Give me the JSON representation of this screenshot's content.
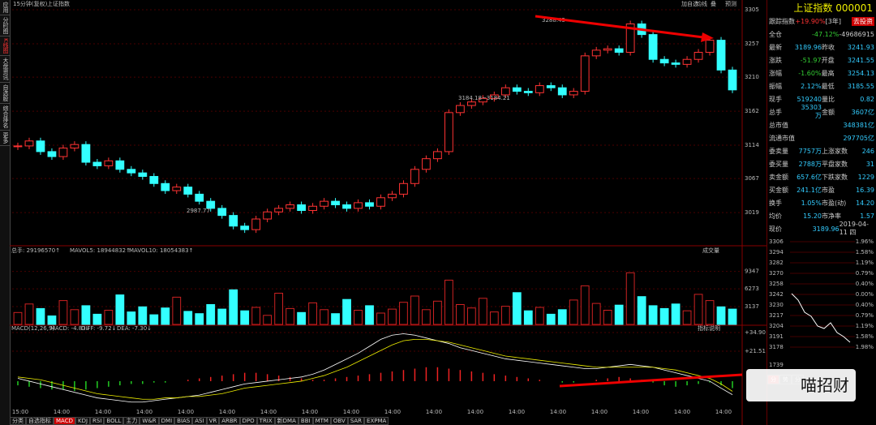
{
  "header": {
    "period": "15分钟(复权)",
    "name": "上证指数",
    "tools": [
      "加自选",
      "均线",
      "叠",
      "预测"
    ]
  },
  "sidebar": [
    "应用",
    "分时图",
    "K线图",
    "大盘资讯",
    "自选股",
    "综合排名",
    "更多"
  ],
  "kline": {
    "annotations": [
      "3288.45",
      "3184.18~3184.21",
      "2987.77"
    ],
    "closes": [
      3113,
      3120,
      3105,
      3098,
      3110,
      3115,
      3090,
      3085,
      3092,
      3080,
      3075,
      3070,
      3060,
      3050,
      3055,
      3045,
      3035,
      3025,
      3015,
      3000,
      2995,
      3010,
      3020,
      3025,
      3030,
      3022,
      3028,
      3035,
      3030,
      3025,
      3033,
      3028,
      3040,
      3045,
      3060,
      3080,
      3095,
      3105,
      3160,
      3170,
      3175,
      3180,
      3185,
      3195,
      3190,
      3188,
      3198,
      3195,
      3185,
      3190,
      3240,
      3248,
      3250,
      3245,
      3285,
      3270,
      3235,
      3230,
      3228,
      3235,
      3245,
      3262,
      3220,
      3192
    ],
    "ylim": [
      2978,
      3313
    ],
    "yticks": [
      3305,
      3257,
      3210,
      3162,
      3114,
      3067,
      3019
    ]
  },
  "volume": {
    "header": [
      "总手: 29196570↑",
      "MAVOL5: 18944832↑",
      "MAVOL10: 18054383↑"
    ],
    "button": "成交量",
    "values": [
      2100,
      3600,
      2800,
      1500,
      4200,
      2600,
      3300,
      1800,
      2500,
      5200,
      2200,
      3100,
      1700,
      2900,
      4800,
      2300,
      1900,
      3500,
      2700,
      6100,
      2400,
      3000,
      1600,
      5500,
      2800,
      2100,
      3800,
      2600,
      1900,
      4400,
      2500,
      3300,
      2000,
      2700,
      3900,
      5000,
      2600,
      4100,
      7800,
      3500,
      2900,
      4600,
      2200,
      3200,
      5600,
      2400,
      3000,
      1800,
      2600,
      4300,
      6800,
      3700,
      2500,
      3400,
      9100,
      4900,
      3300,
      2800,
      3600,
      2400,
      5300,
      4200,
      3100,
      2700
    ],
    "ylim": [
      0,
      10000
    ],
    "yticks": [
      9347,
      6273,
      3137
    ]
  },
  "macd": {
    "header": [
      "MACD(12,26,9)",
      "MACD: -4.83↓",
      "DIFF: -9.72↓",
      "DEA: -7.30↓"
    ],
    "button": "指标说明",
    "hist": [
      -3,
      -4,
      -5,
      -6,
      -6,
      -7,
      -6,
      -5,
      -4,
      -3,
      -2,
      -2,
      -1,
      -1,
      0,
      1,
      2,
      3,
      4,
      5,
      6,
      6,
      5,
      4,
      3,
      2,
      1,
      1,
      2,
      3,
      4,
      5,
      6,
      7,
      8,
      9,
      10,
      10,
      9,
      8,
      7,
      6,
      5,
      4,
      3,
      2,
      1,
      0,
      -1,
      -1,
      0,
      1,
      2,
      3,
      2,
      1,
      -1,
      -3,
      -4,
      -3,
      -2,
      -1,
      -3,
      -5
    ],
    "dif": [
      2,
      0,
      -2,
      -4,
      -6,
      -8,
      -10,
      -12,
      -13,
      -14,
      -15,
      -15,
      -14,
      -13,
      -12,
      -11,
      -10,
      -8,
      -6,
      -4,
      -2,
      -1,
      0,
      1,
      2,
      3,
      5,
      8,
      12,
      16,
      20,
      25,
      30,
      33,
      34,
      33,
      31,
      29,
      27,
      24,
      22,
      20,
      18,
      16,
      15,
      14,
      13,
      12,
      11,
      10,
      9,
      9,
      10,
      11,
      12,
      11,
      10,
      8,
      6,
      4,
      2,
      0,
      -5,
      -9.72
    ],
    "dea": [
      3,
      2,
      1,
      -1,
      -3,
      -5,
      -7,
      -9,
      -10,
      -11,
      -12,
      -13,
      -13,
      -12,
      -12,
      -11,
      -11,
      -10,
      -9,
      -7,
      -5,
      -4,
      -3,
      -2,
      -1,
      0,
      2,
      4,
      7,
      10,
      14,
      18,
      22,
      26,
      29,
      30,
      30,
      29,
      28,
      26,
      24,
      22,
      20,
      18,
      17,
      16,
      15,
      14,
      13,
      12,
      11,
      10,
      10,
      10,
      10,
      10,
      10,
      9,
      8,
      6,
      4,
      2,
      -2,
      -7.3
    ],
    "ylim": [
      -20.4,
      37.8
    ],
    "yticks": [
      {
        "value": 34.9,
        "label": "+34.90"
      },
      {
        "value": 21.51,
        "label": "+21.51"
      }
    ]
  },
  "xlabels": [
    "15:00",
    "14:00",
    "14:00",
    "14:00",
    "14:00",
    "14:00",
    "14:00",
    "14:00",
    "14:00",
    "14:00",
    "14:00",
    "14:00",
    "14:00",
    "14:00",
    "14:00",
    "14:00",
    "14:00",
    "14:00"
  ],
  "bottom_tabs": [
    "分类",
    "自选指标",
    "MACD",
    "KDJ",
    "RSI",
    "BOLL",
    "主力",
    "W&R",
    "DMI",
    "BIAS",
    "ASI",
    "VR",
    "ARBR",
    "DPO",
    "TRIX",
    "新DMA",
    "BBI",
    "MTM",
    "OBV",
    "SAR",
    "EXPMA"
  ],
  "panel": {
    "title": "上证指数 000001",
    "track": [
      "跟踪指数",
      "+19.90%",
      "[3年]",
      "去投资"
    ],
    "position": [
      "全仓",
      "-47.12%",
      "-49686915"
    ],
    "rows": [
      [
        "最新",
        "3189.96",
        "昨收",
        "3241.93"
      ],
      [
        "涨跌",
        "-51.97",
        "开盘",
        "3241.55"
      ],
      [
        "涨幅",
        "-1.60%",
        "最高",
        "3254.13"
      ],
      [
        "振幅",
        "2.12%",
        "最低",
        "3185.55"
      ],
      [
        "现手",
        "519240",
        "量比",
        "0.82"
      ],
      [
        "总手",
        "35303万",
        "金额",
        "3607亿"
      ]
    ],
    "caps": [
      [
        "总市值",
        "348381亿"
      ],
      [
        "流通市值",
        "297705亿"
      ]
    ],
    "rows2": [
      [
        "委卖量",
        "7757万",
        "上涨家数",
        "246"
      ],
      [
        "委买量",
        "2788万",
        "平盘家数",
        "31"
      ],
      [
        "卖金额",
        "657.6亿",
        "下跌家数",
        "1229"
      ],
      [
        "买金额",
        "241.1亿",
        "市盈",
        "16.39"
      ],
      [
        "换手",
        "1.05%",
        "市盈(动)",
        "14.20"
      ],
      [
        "均价",
        "15.20",
        "市净率",
        "1.57"
      ]
    ],
    "now": [
      "现价",
      "3189.96",
      "2019-04-11 四"
    ],
    "mini_left": [
      "3306",
      "3294",
      "3282",
      "3270",
      "3258",
      "3242",
      "3230",
      "3217",
      "3204",
      "3191",
      "3178"
    ],
    "mini_right": [
      "1.96%",
      "1.58%",
      "1.19%",
      "0.79%",
      "0.40%",
      "0.00%",
      "0.40%",
      "0.79%",
      "1.19%",
      "1.58%",
      "1.98%"
    ],
    "mini_vol": "1739",
    "tabs": [
      "分",
      "势",
      "分"
    ]
  },
  "watermark": "喵招财"
}
